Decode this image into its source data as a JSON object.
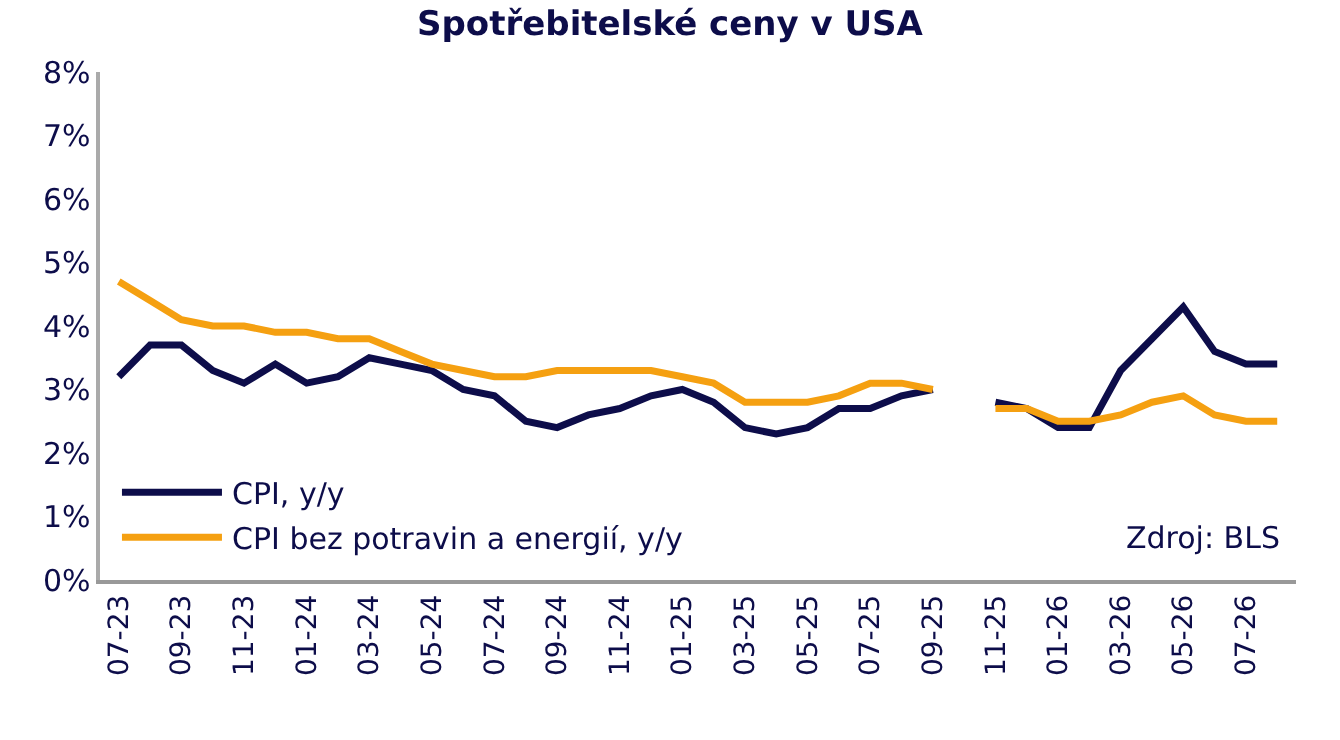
{
  "chart_data": {
    "type": "line",
    "title": "Spotřebitelské ceny v USA",
    "categories": [
      "07-23",
      null,
      "09-23",
      null,
      "11-23",
      null,
      "01-24",
      null,
      "03-24",
      null,
      "05-24",
      null,
      "07-24",
      null,
      "09-24",
      null,
      "11-24",
      null,
      "01-25",
      null,
      "03-25",
      null,
      "05-25",
      null,
      "07-25",
      null,
      "09-25",
      null,
      "11-25",
      null,
      "01-26",
      null,
      "03-26",
      null,
      "05-26",
      null,
      "07-26",
      null
    ],
    "series": [
      {
        "name": "CPI, y/y",
        "color": "#0d0d4a",
        "values": [
          3.2,
          3.7,
          3.7,
          3.3,
          3.1,
          3.4,
          3.1,
          3.2,
          3.5,
          3.4,
          3.3,
          3.0,
          2.9,
          2.5,
          2.4,
          2.6,
          2.7,
          2.9,
          3.0,
          2.8,
          2.4,
          2.3,
          2.4,
          2.7,
          2.7,
          2.9,
          3.0,
          null,
          2.8,
          2.7,
          2.4,
          2.4,
          3.3,
          3.8,
          4.3,
          3.6,
          3.4,
          3.4
        ]
      },
      {
        "name": "CPI bez potravin a energií, y/y",
        "color": "#f5a011",
        "values": [
          4.7,
          4.4,
          4.1,
          4.0,
          4.0,
          3.9,
          3.9,
          3.8,
          3.8,
          3.6,
          3.4,
          3.3,
          3.2,
          3.2,
          3.3,
          3.3,
          3.3,
          3.3,
          3.2,
          3.1,
          2.8,
          2.8,
          2.8,
          2.9,
          3.1,
          3.1,
          3.0,
          null,
          2.7,
          2.7,
          2.5,
          2.5,
          2.6,
          2.8,
          2.9,
          2.6,
          2.5,
          2.5
        ]
      }
    ],
    "ylim": [
      0,
      8
    ],
    "yticks": [
      {
        "value": 0,
        "label": "0%"
      },
      {
        "value": 1,
        "label": "1%"
      },
      {
        "value": 2,
        "label": "2%"
      },
      {
        "value": 3,
        "label": "3%"
      },
      {
        "value": 4,
        "label": "4%"
      },
      {
        "value": 5,
        "label": "5%"
      },
      {
        "value": 6,
        "label": "6%"
      },
      {
        "value": 7,
        "label": "7%"
      },
      {
        "value": 8,
        "label": "8%"
      }
    ],
    "legend": "bottom left",
    "marker": "none",
    "line_style": "solid",
    "annotations": [
      "Zdroj: BLS"
    ]
  }
}
